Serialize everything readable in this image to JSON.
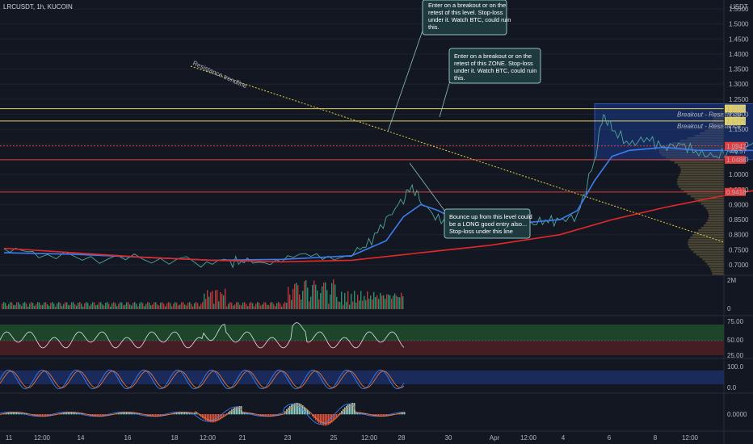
{
  "header": {
    "symbol": "LRCUSDT, 1h, KUCOIN",
    "currency": "USDT"
  },
  "chart_data": {
    "type": "line",
    "price_axis": {
      "ticks": [
        "1.5500",
        "1.5000",
        "1.4500",
        "1.4000",
        "1.3500",
        "1.3000",
        "1.2500",
        "1.2000",
        "1.1500",
        "1.1000",
        "1.0500",
        "1.0000",
        "0.9500",
        "0.9000",
        "0.8500",
        "0.8000",
        "0.7500",
        "0.7000"
      ],
      "range": [
        0.68,
        1.56
      ]
    },
    "time_axis": {
      "labels": [
        "11",
        "12:00",
        "14",
        "16",
        "18",
        "12:00",
        "21",
        "23",
        "25",
        "12:00",
        "28",
        "30",
        "Apr",
        "12:00",
        "4",
        "6",
        "8",
        "12:00"
      ],
      "range_hours": [
        0,
        1296
      ]
    },
    "price_series": {
      "name": "",
      "points": [
        [
          0,
          0.745
        ],
        [
          24,
          0.73
        ],
        [
          60,
          0.722
        ],
        [
          96,
          0.72
        ],
        [
          132,
          0.712
        ],
        [
          156,
          0.708
        ],
        [
          168,
          0.712
        ],
        [
          192,
          0.72
        ],
        [
          216,
          0.725
        ],
        [
          240,
          0.738
        ],
        [
          252,
          0.77
        ],
        [
          264,
          0.85
        ],
        [
          276,
          0.92
        ],
        [
          282,
          0.96
        ],
        [
          288,
          0.91
        ],
        [
          300,
          0.85
        ],
        [
          312,
          0.84
        ],
        [
          336,
          0.83
        ],
        [
          360,
          0.83
        ],
        [
          372,
          0.845
        ],
        [
          384,
          0.848
        ],
        [
          396,
          0.86
        ],
        [
          408,
          1.05
        ],
        [
          414,
          1.2
        ],
        [
          420,
          1.15
        ],
        [
          432,
          1.1
        ],
        [
          444,
          1.12
        ],
        [
          456,
          1.09
        ],
        [
          468,
          1.1
        ],
        [
          480,
          1.07
        ],
        [
          492,
          1.06
        ],
        [
          504,
          1.08
        ],
        [
          516,
          1.1
        ],
        [
          528,
          1.07
        ],
        [
          540,
          1.08
        ],
        [
          552,
          1.09
        ],
        [
          564,
          1.08
        ],
        [
          576,
          1.09
        ]
      ]
    },
    "ma_blue": {
      "points": [
        [
          0,
          0.74
        ],
        [
          48,
          0.735
        ],
        [
          96,
          0.725
        ],
        [
          144,
          0.715
        ],
        [
          192,
          0.718
        ],
        [
          240,
          0.73
        ],
        [
          264,
          0.78
        ],
        [
          276,
          0.86
        ],
        [
          288,
          0.9
        ],
        [
          300,
          0.88
        ],
        [
          312,
          0.85
        ],
        [
          336,
          0.84
        ],
        [
          360,
          0.84
        ],
        [
          384,
          0.85
        ],
        [
          396,
          0.88
        ],
        [
          408,
          0.98
        ],
        [
          420,
          1.06
        ],
        [
          432,
          1.08
        ],
        [
          456,
          1.09
        ],
        [
          480,
          1.08
        ],
        [
          504,
          1.08
        ],
        [
          528,
          1.08
        ],
        [
          552,
          1.085
        ],
        [
          576,
          1.085
        ]
      ]
    },
    "ma_red": {
      "points": [
        [
          0,
          0.755
        ],
        [
          48,
          0.74
        ],
        [
          96,
          0.725
        ],
        [
          144,
          0.715
        ],
        [
          192,
          0.71
        ],
        [
          240,
          0.715
        ],
        [
          288,
          0.74
        ],
        [
          336,
          0.765
        ],
        [
          384,
          0.8
        ],
        [
          420,
          0.85
        ],
        [
          456,
          0.89
        ],
        [
          492,
          0.925
        ],
        [
          528,
          0.955
        ],
        [
          552,
          0.97
        ],
        [
          576,
          0.98
        ]
      ]
    },
    "levels": [
      {
        "label": "1.2186",
        "value": 1.2186,
        "color": "#e0d060",
        "text": "Breakout - Resistance"
      },
      {
        "label": "1.1775",
        "value": 1.1775,
        "color": "#e0d060",
        "text": "Breakout - Resistance"
      },
      {
        "label": "1.0947",
        "value": 1.0947,
        "color": "#e23b3b",
        "text": ""
      },
      {
        "label": "1.0488",
        "value": 1.0488,
        "color": "#e23b3b",
        "text": ""
      },
      {
        "label": "0.9418",
        "value": 0.9418,
        "color": "#e23b3b",
        "text": ""
      }
    ],
    "countdown": "46:57",
    "trendline_label": "Resistance trendline",
    "annotations": [
      {
        "lines": [
          "Enter on a breakout or on the",
          "retest of this level. Stop-loss",
          "under it. Watch BTC, could ruin",
          "this."
        ]
      },
      {
        "lines": [
          "Enter on a breakout or on the",
          "retest of this ZONE. Stop-loss",
          "under it. Watch BTC, could ruin",
          "this."
        ]
      },
      {
        "lines": [
          "Bounce up from this level could",
          "be a LONG good entry also...",
          "Stop-loss under this line"
        ]
      }
    ],
    "volume_axis": [
      "2M",
      "0"
    ],
    "rsi_axis": [
      "75.00",
      "50.00",
      "25.00"
    ],
    "stoch_axis": [
      "100.0",
      "0.0"
    ],
    "macd_axis": [
      "0.0000"
    ]
  }
}
